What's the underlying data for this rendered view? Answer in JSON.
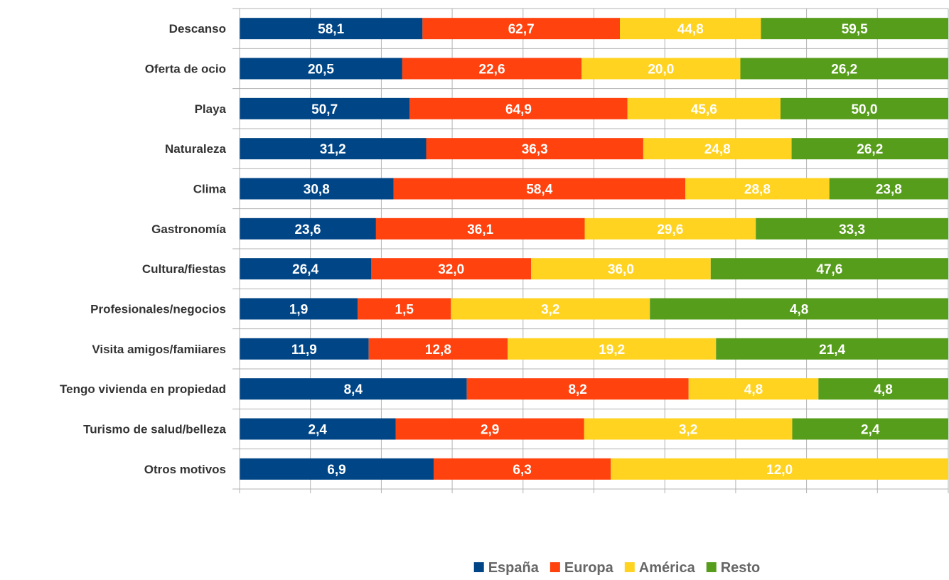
{
  "chart_data": {
    "type": "bar",
    "orientation": "horizontal",
    "stacking": "percent",
    "categories": [
      "Descanso",
      "Oferta de ocio",
      "Playa",
      "Naturaleza",
      "Clima",
      "Gastronomía",
      "Cultura/fiestas",
      "Profesionales/negocios",
      "Visita amigos/famiiares",
      "Tengo vivienda en propiedad",
      "Turismo de salud/belleza",
      "Otros motivos"
    ],
    "series": [
      {
        "name": "España",
        "color": "#004586",
        "values": [
          58.1,
          20.5,
          50.7,
          31.2,
          30.8,
          23.6,
          26.4,
          1.9,
          11.9,
          8.4,
          2.4,
          6.9
        ],
        "labels": [
          "58,1",
          "20,5",
          "50,7",
          "31,2",
          "30,8",
          "23,6",
          "26,4",
          "1,9",
          "11,9",
          "8,4",
          "2,4",
          "6,9"
        ]
      },
      {
        "name": "Europa",
        "color": "#ff420e",
        "values": [
          62.7,
          22.6,
          64.9,
          36.3,
          58.4,
          36.1,
          32.0,
          1.5,
          12.8,
          8.2,
          2.9,
          6.3
        ],
        "labels": [
          "62,7",
          "22,6",
          "64,9",
          "36,3",
          "58,4",
          "36,1",
          "32,0",
          "1,5",
          "12,8",
          "8,2",
          "2,9",
          "6,3"
        ]
      },
      {
        "name": "América",
        "color": "#ffd320",
        "values": [
          44.8,
          20.0,
          45.6,
          24.8,
          28.8,
          29.6,
          36.0,
          3.2,
          19.2,
          4.8,
          3.2,
          12.0
        ],
        "labels": [
          "44,8",
          "20,0",
          "45,6",
          "24,8",
          "28,8",
          "29,6",
          "36,0",
          "3,2",
          "19,2",
          "4,8",
          "3,2",
          "12,0"
        ]
      },
      {
        "name": "Resto",
        "color": "#579d1c",
        "values": [
          59.5,
          26.2,
          50.0,
          26.2,
          23.8,
          33.3,
          47.6,
          4.8,
          21.4,
          4.8,
          2.4,
          null
        ],
        "labels": [
          "59,5",
          "26,2",
          "50,0",
          "26,2",
          "23,8",
          "33,3",
          "47,6",
          "4,8",
          "21,4",
          "4,8",
          "2,4",
          ""
        ]
      }
    ],
    "legend_position": "bottom",
    "grid": true,
    "xlim": [
      0,
      100
    ]
  }
}
